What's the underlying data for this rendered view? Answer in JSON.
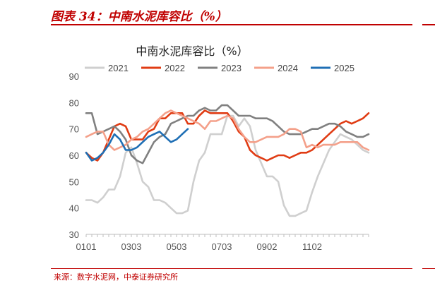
{
  "figure_title": "图表 34：中南水泥库容比（%）",
  "source": "来源：数字水泥网，中泰证券研究所",
  "chart_data": {
    "type": "line",
    "title": "中南水泥库容比（%）",
    "xlabel": "",
    "ylabel": "",
    "ylim": [
      30,
      90
    ],
    "yticks": [
      30,
      40,
      50,
      60,
      70,
      80,
      90
    ],
    "x_tick_labels": [
      "0101",
      "0303",
      "0503",
      "0703",
      "0902",
      "1102"
    ],
    "x_tick_positions": [
      0,
      8,
      16,
      24,
      32,
      40
    ],
    "x_max": 50,
    "grid": false,
    "legend_position": "top",
    "series": [
      {
        "name": "2021",
        "color": "#cfcfcf",
        "points": [
          [
            0,
            43
          ],
          [
            1,
            43
          ],
          [
            2,
            42
          ],
          [
            3,
            44
          ],
          [
            4,
            47
          ],
          [
            5,
            47
          ],
          [
            6,
            52
          ],
          [
            7,
            61
          ],
          [
            8,
            63
          ],
          [
            9,
            57
          ],
          [
            10,
            50
          ],
          [
            11,
            48
          ],
          [
            12,
            43
          ],
          [
            13,
            43
          ],
          [
            14,
            42
          ],
          [
            15,
            40
          ],
          [
            16,
            38
          ],
          [
            17,
            38
          ],
          [
            18,
            39
          ],
          [
            19,
            50
          ],
          [
            20,
            58
          ],
          [
            21,
            61
          ],
          [
            22,
            68
          ],
          [
            23,
            68
          ],
          [
            24,
            68
          ],
          [
            25,
            75
          ],
          [
            26,
            75
          ],
          [
            27,
            71
          ],
          [
            28,
            74
          ],
          [
            29,
            71
          ],
          [
            30,
            62
          ],
          [
            31,
            57
          ],
          [
            32,
            52
          ],
          [
            33,
            52
          ],
          [
            34,
            50
          ],
          [
            35,
            41
          ],
          [
            36,
            37
          ],
          [
            37,
            37
          ],
          [
            38,
            38
          ],
          [
            39,
            39
          ],
          [
            40,
            46
          ],
          [
            41,
            52
          ],
          [
            42,
            57
          ],
          [
            43,
            62
          ],
          [
            44,
            65
          ],
          [
            45,
            68
          ],
          [
            46,
            67
          ],
          [
            47,
            66
          ],
          [
            48,
            64
          ],
          [
            49,
            62
          ],
          [
            50,
            61
          ]
        ]
      },
      {
        "name": "2022",
        "color": "#e03c14",
        "points": [
          [
            0,
            61
          ],
          [
            1,
            59
          ],
          [
            2,
            58
          ],
          [
            3,
            61
          ],
          [
            4,
            66
          ],
          [
            5,
            71
          ],
          [
            6,
            72
          ],
          [
            7,
            71
          ],
          [
            8,
            66
          ],
          [
            9,
            66
          ],
          [
            10,
            66
          ],
          [
            11,
            69
          ],
          [
            12,
            70
          ],
          [
            13,
            74
          ],
          [
            14,
            74
          ],
          [
            15,
            76
          ],
          [
            16,
            76
          ],
          [
            17,
            76
          ],
          [
            18,
            72
          ],
          [
            19,
            72
          ],
          [
            20,
            75
          ],
          [
            21,
            77
          ],
          [
            22,
            76
          ],
          [
            23,
            76
          ],
          [
            24,
            76
          ],
          [
            25,
            76
          ],
          [
            26,
            73
          ],
          [
            27,
            69
          ],
          [
            28,
            67
          ],
          [
            29,
            62
          ],
          [
            30,
            60
          ],
          [
            31,
            59
          ],
          [
            32,
            58
          ],
          [
            33,
            59
          ],
          [
            34,
            60
          ],
          [
            35,
            60
          ],
          [
            36,
            59
          ],
          [
            37,
            60
          ],
          [
            38,
            61
          ],
          [
            39,
            61
          ],
          [
            40,
            62
          ],
          [
            41,
            64
          ],
          [
            42,
            66
          ],
          [
            43,
            68
          ],
          [
            44,
            70
          ],
          [
            45,
            72
          ],
          [
            46,
            73
          ],
          [
            47,
            72
          ],
          [
            48,
            73
          ],
          [
            49,
            74
          ],
          [
            50,
            76
          ]
        ]
      },
      {
        "name": "2023",
        "color": "#808080",
        "points": [
          [
            0,
            76
          ],
          [
            1,
            76
          ],
          [
            2,
            68
          ],
          [
            3,
            69
          ],
          [
            4,
            70
          ],
          [
            5,
            71
          ],
          [
            6,
            69
          ],
          [
            7,
            66
          ],
          [
            8,
            60
          ],
          [
            9,
            58
          ],
          [
            10,
            57
          ],
          [
            11,
            61
          ],
          [
            12,
            65
          ],
          [
            13,
            67
          ],
          [
            14,
            68
          ],
          [
            15,
            72
          ],
          [
            16,
            73
          ],
          [
            17,
            74
          ],
          [
            18,
            75
          ],
          [
            19,
            75
          ],
          [
            20,
            77
          ],
          [
            21,
            78
          ],
          [
            22,
            77
          ],
          [
            23,
            77
          ],
          [
            24,
            79
          ],
          [
            25,
            79
          ],
          [
            26,
            77
          ],
          [
            27,
            75
          ],
          [
            28,
            75
          ],
          [
            29,
            75
          ],
          [
            30,
            74
          ],
          [
            31,
            74
          ],
          [
            32,
            74
          ],
          [
            33,
            73
          ],
          [
            34,
            71
          ],
          [
            35,
            69
          ],
          [
            36,
            68
          ],
          [
            37,
            68
          ],
          [
            38,
            68
          ],
          [
            39,
            69
          ],
          [
            40,
            70
          ],
          [
            41,
            70
          ],
          [
            42,
            71
          ],
          [
            43,
            72
          ],
          [
            44,
            72
          ],
          [
            45,
            71
          ],
          [
            46,
            69
          ],
          [
            47,
            68
          ],
          [
            48,
            67
          ],
          [
            49,
            67
          ],
          [
            50,
            68
          ]
        ]
      },
      {
        "name": "2024",
        "color": "#f4a08a",
        "points": [
          [
            0,
            67
          ],
          [
            1,
            68
          ],
          [
            2,
            69
          ],
          [
            3,
            69
          ],
          [
            4,
            64
          ],
          [
            5,
            62
          ],
          [
            6,
            63
          ],
          [
            7,
            64
          ],
          [
            8,
            66
          ],
          [
            9,
            67
          ],
          [
            10,
            69
          ],
          [
            11,
            70
          ],
          [
            12,
            72
          ],
          [
            13,
            74
          ],
          [
            14,
            76
          ],
          [
            15,
            77
          ],
          [
            16,
            76
          ],
          [
            17,
            75
          ],
          [
            18,
            74
          ],
          [
            19,
            73
          ],
          [
            20,
            72
          ],
          [
            21,
            70
          ],
          [
            22,
            73
          ],
          [
            23,
            73
          ],
          [
            24,
            74
          ],
          [
            25,
            75
          ],
          [
            26,
            74
          ],
          [
            27,
            70
          ],
          [
            28,
            67
          ],
          [
            29,
            65
          ],
          [
            30,
            65
          ],
          [
            31,
            66
          ],
          [
            32,
            67
          ],
          [
            33,
            67
          ],
          [
            34,
            67
          ],
          [
            35,
            68
          ],
          [
            36,
            70
          ],
          [
            37,
            70
          ],
          [
            38,
            69
          ],
          [
            39,
            63
          ],
          [
            40,
            64
          ],
          [
            41,
            63
          ],
          [
            42,
            64
          ],
          [
            43,
            64
          ],
          [
            44,
            64
          ],
          [
            45,
            65
          ],
          [
            46,
            65
          ],
          [
            47,
            65
          ],
          [
            48,
            65
          ],
          [
            49,
            63
          ],
          [
            50,
            62
          ]
        ]
      },
      {
        "name": "2025",
        "color": "#1f6fb5",
        "points": [
          [
            0,
            61
          ],
          [
            1,
            58
          ],
          [
            2,
            59
          ],
          [
            3,
            61
          ],
          [
            4,
            64
          ],
          [
            5,
            68
          ],
          [
            6,
            66
          ],
          [
            7,
            62
          ],
          [
            8,
            62
          ],
          [
            9,
            63
          ],
          [
            10,
            65
          ],
          [
            11,
            67
          ],
          [
            12,
            68
          ],
          [
            13,
            69
          ],
          [
            14,
            67
          ],
          [
            15,
            65
          ],
          [
            16,
            66
          ],
          [
            17,
            68
          ],
          [
            18,
            70
          ]
        ]
      }
    ]
  }
}
